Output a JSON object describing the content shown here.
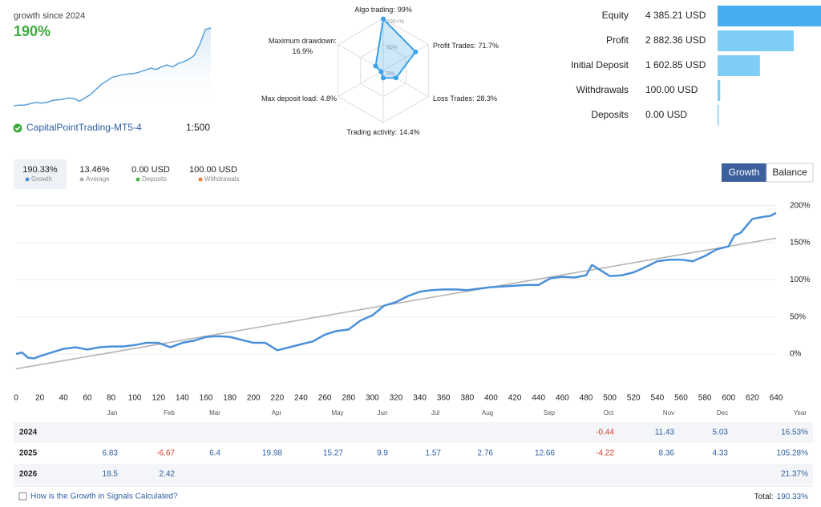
{
  "summary": {
    "caption": "growth since 2024",
    "growth": "190%",
    "account": "CapitalPointTrading-MT5-4",
    "leverage": "1:500"
  },
  "chart_data": [
    {
      "type": "area",
      "color": "#5aa0dc",
      "values": [
        0,
        1,
        1,
        3,
        5,
        4,
        5,
        8,
        9,
        10,
        12,
        11,
        7,
        12,
        17,
        25,
        33,
        38,
        44,
        46,
        48,
        49,
        50,
        52,
        55,
        58,
        56,
        60,
        63,
        60,
        65,
        68,
        72,
        78,
        95,
        118,
        120
      ]
    },
    {
      "type": "radar",
      "color": "#3aa0e8",
      "categories": [
        "Algo trading:",
        "Profit Trades:",
        "Loss Trades:",
        "Trading activity:",
        "Max deposit load:",
        "Maximum drawdown:"
      ],
      "values": [
        99,
        71.7,
        28.3,
        14.4,
        4.8,
        16.9
      ],
      "value_labels": [
        "99%",
        "71.7%",
        "28.3%",
        "14.4%",
        "4.8%",
        "16.9%"
      ],
      "ylim": [
        0,
        100
      ],
      "yticks": [
        {
          "value": 0,
          "label": "0%"
        },
        {
          "value": 50,
          "label": "50%"
        },
        {
          "value": 100,
          "label": "100+%"
        }
      ]
    },
    {
      "type": "hbar",
      "categories": [
        "Equity",
        "Profit",
        "Initial Deposit",
        "Withdrawals",
        "Deposits"
      ],
      "values": [
        4385.21,
        2882.36,
        1602.85,
        100,
        0
      ],
      "value_labels": [
        "4 385.21 USD",
        "2 882.36 USD",
        "1 602.85 USD",
        "100.00 USD",
        "0.00 USD"
      ],
      "colors": [
        "#45aef0",
        "#7dcdf6",
        "#7dcdf6",
        "#7dcdf6",
        "#7dcdf6"
      ],
      "xlim": [
        0,
        4400
      ]
    },
    {
      "type": "line",
      "grid": true,
      "xlim": [
        0,
        640
      ],
      "ylim": [
        -40,
        205
      ],
      "xticks": [
        0,
        20,
        40,
        60,
        80,
        100,
        120,
        140,
        160,
        180,
        200,
        220,
        240,
        260,
        280,
        300,
        320,
        340,
        360,
        380,
        400,
        420,
        440,
        460,
        480,
        500,
        520,
        540,
        560,
        580,
        600,
        620,
        640
      ],
      "yticks": [
        {
          "value": 0,
          "label": "0%"
        },
        {
          "value": 50,
          "label": "50%"
        },
        {
          "value": 100,
          "label": "100%"
        },
        {
          "value": 150,
          "label": "150%"
        },
        {
          "value": 200,
          "label": "200%"
        }
      ],
      "series": [
        {
          "name": "Growth",
          "color": "#4a90d9",
          "x": [
            0,
            5,
            10,
            15,
            20,
            30,
            40,
            50,
            60,
            70,
            80,
            90,
            100,
            110,
            120,
            130,
            140,
            150,
            160,
            170,
            180,
            190,
            200,
            210,
            220,
            230,
            240,
            250,
            260,
            270,
            280,
            290,
            300,
            310,
            320,
            330,
            340,
            350,
            360,
            370,
            380,
            390,
            400,
            410,
            420,
            430,
            440,
            450,
            460,
            470,
            480,
            485,
            490,
            500,
            510,
            520,
            530,
            540,
            550,
            560,
            570,
            580,
            590,
            600,
            605,
            610,
            620,
            630,
            635,
            640
          ],
          "values": [
            0,
            2,
            -5,
            -6,
            -3,
            2,
            7,
            9,
            6,
            9,
            10,
            10,
            12,
            15,
            15,
            9,
            15,
            18,
            23,
            24,
            23,
            19,
            15,
            15,
            5,
            9,
            13,
            17,
            26,
            31,
            33,
            45,
            52,
            65,
            70,
            78,
            84,
            86,
            87,
            87,
            86,
            88,
            90,
            91,
            92,
            93,
            93,
            102,
            104,
            103,
            106,
            120,
            115,
            105,
            106,
            110,
            117,
            125,
            127,
            127,
            125,
            132,
            141,
            145,
            160,
            163,
            182,
            185,
            186,
            190
          ]
        },
        {
          "name": "Average",
          "color": "#b0b0b0",
          "x": [
            0,
            640
          ],
          "values": [
            -20,
            156
          ]
        }
      ]
    }
  ],
  "stats": [
    {
      "value": "190.33%"
    },
    {
      "value": "13.46%"
    },
    {
      "value": "0.00 USD",
      "label": "Deposits",
      "color": "#4caf50"
    },
    {
      "value": "100.00 USD",
      "label": "Withdrawals",
      "color": "#f07b3f"
    }
  ],
  "tabs": [
    "Growth",
    "Balance"
  ],
  "table": {
    "columns": [
      "Jan",
      "Feb",
      "Mar",
      "Apr",
      "May",
      "Jun",
      "Jul",
      "Aug",
      "Sep",
      "Oct",
      "Nov",
      "Dec",
      "Year"
    ],
    "rows": [
      {
        "year": "2024",
        "cells": [
          null,
          null,
          null,
          null,
          null,
          null,
          null,
          null,
          null,
          "-0.44",
          "11.43",
          "5.03",
          "16.53%"
        ]
      },
      {
        "year": "2025",
        "cells": [
          "6.83",
          "-6.67",
          "6.4",
          "19.98",
          "15.27",
          "9.9",
          "1.57",
          "2.76",
          "12.66",
          "-4.22",
          "8.36",
          "4.33",
          "105.28%"
        ]
      },
      {
        "year": "2026",
        "cells": [
          "18.5",
          "2.42",
          null,
          null,
          null,
          null,
          null,
          null,
          null,
          null,
          null,
          null,
          "21.37%"
        ]
      }
    ]
  },
  "footer": {
    "link": "How is the Growth in Signals Calculated?",
    "total_label": "Total:",
    "total": "190.33%"
  }
}
